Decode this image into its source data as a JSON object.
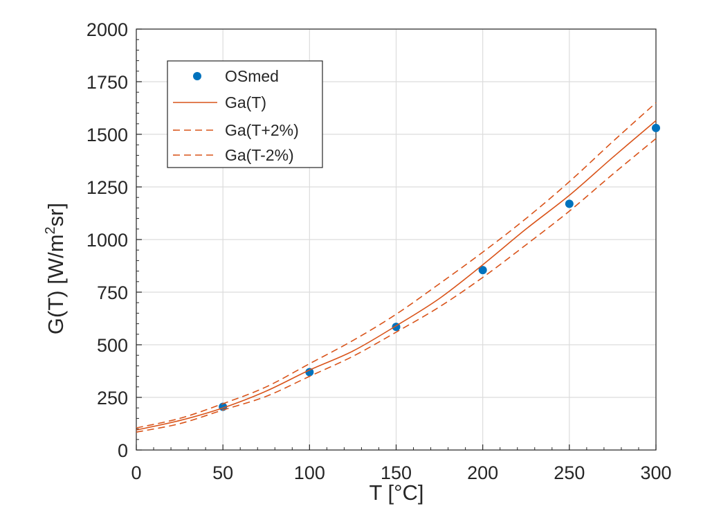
{
  "chart_data": {
    "type": "line",
    "xlabel": "T [°C]",
    "ylabel": {
      "prefix": "G(T) [W/m",
      "sup": "2",
      "suffix": "sr]"
    },
    "xlim": [
      0,
      300
    ],
    "ylim": [
      0,
      2000
    ],
    "xticks": [
      0,
      50,
      100,
      150,
      200,
      250,
      300
    ],
    "yticks": [
      0,
      250,
      500,
      750,
      1000,
      1250,
      1500,
      1750,
      2000
    ],
    "grid": true,
    "legend_position": "top-left",
    "series": [
      {
        "name": "OSmed",
        "style": "marker",
        "color": "#0072bd",
        "x": [
          50,
          100,
          150,
          200,
          250,
          300
        ],
        "y": [
          205,
          370,
          585,
          855,
          1170,
          1530
        ]
      },
      {
        "name": "Ga(T)",
        "style": "solid",
        "color": "#d95319",
        "x": [
          0,
          25,
          50,
          75,
          100,
          125,
          150,
          175,
          200,
          225,
          250,
          275,
          300
        ],
        "y": [
          95,
          140,
          200,
          280,
          380,
          470,
          590,
          720,
          880,
          1050,
          1210,
          1390,
          1565
        ]
      },
      {
        "name": "Ga(T+2%)",
        "style": "dashed",
        "color": "#d95319",
        "x": [
          0,
          25,
          50,
          75,
          100,
          125,
          150,
          175,
          200,
          225,
          250,
          275,
          300
        ],
        "y": [
          105,
          150,
          220,
          300,
          410,
          520,
          645,
          790,
          940,
          1100,
          1275,
          1465,
          1650
        ]
      },
      {
        "name": "Ga(T-2%)",
        "style": "dashed",
        "color": "#d95319",
        "x": [
          0,
          25,
          50,
          75,
          100,
          125,
          150,
          175,
          200,
          225,
          250,
          275,
          300
        ],
        "y": [
          85,
          125,
          190,
          255,
          350,
          445,
          560,
          680,
          820,
          975,
          1135,
          1310,
          1480
        ]
      }
    ]
  }
}
